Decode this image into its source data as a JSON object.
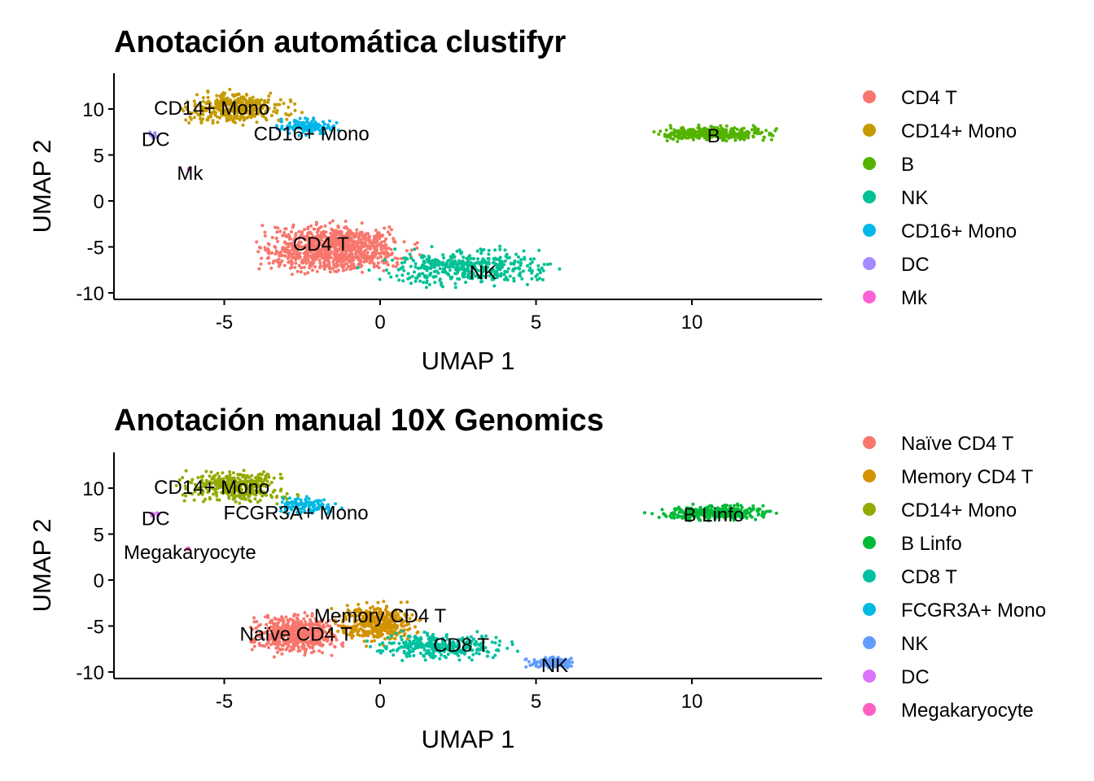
{
  "chart_data": [
    {
      "type": "scatter",
      "title": "Anotación automática clustifyr",
      "xlabel": "UMAP 1",
      "ylabel": "UMAP 2",
      "xlim": [
        -8.5,
        14.2
      ],
      "ylim": [
        -11,
        14
      ],
      "xticks": [
        "-5",
        "0",
        "5",
        "10"
      ],
      "yticks": [
        "10",
        "5",
        "0",
        "-5",
        "-10"
      ],
      "grid": false,
      "legend_position": "right",
      "legend": [
        {
          "label": "CD4 T",
          "color": "#F8766D"
        },
        {
          "label": "CD14+ Mono",
          "color": "#C49A00"
        },
        {
          "label": "B",
          "color": "#53B400"
        },
        {
          "label": "NK",
          "color": "#00C094"
        },
        {
          "label": "CD16+ Mono",
          "color": "#00B6EB"
        },
        {
          "label": "DC",
          "color": "#A58AFF"
        },
        {
          "label": "Mk",
          "color": "#FB61D7"
        }
      ],
      "clusters": [
        {
          "label": "CD14+ Mono",
          "color": "#C49A00",
          "x_range": [
            -6.8,
            -2.3
          ],
          "y_range": [
            7.8,
            12.4
          ],
          "n": 380,
          "label_x": -5.4,
          "label_y": 10.1
        },
        {
          "label": "CD16+ Mono",
          "color": "#00B6EB",
          "x_range": [
            -3.6,
            -1.1
          ],
          "y_range": [
            6.9,
            9.2
          ],
          "n": 110,
          "label_x": -2.2,
          "label_y": 7.3
        },
        {
          "label": "DC",
          "color": "#A58AFF",
          "x_range": [
            -7.5,
            -7.0
          ],
          "y_range": [
            6.6,
            7.6
          ],
          "n": 12,
          "label_x": -7.2,
          "label_y": 6.7
        },
        {
          "label": "Mk",
          "color": "#FB61D7",
          "x_range": [
            -6.3,
            -6.0
          ],
          "y_range": [
            3.2,
            3.6
          ],
          "n": 4,
          "label_x": -6.1,
          "label_y": 3.0
        },
        {
          "label": "B",
          "color": "#53B400",
          "x_range": [
            8.3,
            13.2
          ],
          "y_range": [
            6.3,
            8.4
          ],
          "n": 330,
          "label_x": 10.7,
          "label_y": 7.1
        },
        {
          "label": "CD4 T",
          "color": "#F8766D",
          "x_range": [
            -4.6,
            1.6
          ],
          "y_range": [
            -8.6,
            -1.8
          ],
          "n": 950,
          "label_x": -1.9,
          "label_y": -4.7
        },
        {
          "label": "NK",
          "color": "#00C094",
          "x_range": [
            -1.0,
            6.5
          ],
          "y_range": [
            -9.8,
            -4.6
          ],
          "n": 420,
          "label_x": 3.3,
          "label_y": -7.8
        }
      ]
    },
    {
      "type": "scatter",
      "title": "Anotación manual 10X Genomics",
      "xlabel": "UMAP 1",
      "ylabel": "UMAP 2",
      "xlim": [
        -8.5,
        14.2
      ],
      "ylim": [
        -11,
        14
      ],
      "xticks": [
        "-5",
        "0",
        "5",
        "10"
      ],
      "yticks": [
        "10",
        "5",
        "0",
        "-5",
        "-10"
      ],
      "grid": false,
      "legend_position": "right",
      "legend": [
        {
          "label": "Naïve CD4 T",
          "color": "#F8766D"
        },
        {
          "label": "Memory CD4 T",
          "color": "#D39200"
        },
        {
          "label": "CD14+ Mono",
          "color": "#93AA00"
        },
        {
          "label": "B Linfo",
          "color": "#00BA38"
        },
        {
          "label": "CD8 T",
          "color": "#00C19F"
        },
        {
          "label": "FCGR3A+ Mono",
          "color": "#00B9E3"
        },
        {
          "label": "NK",
          "color": "#619CFF"
        },
        {
          "label": "DC",
          "color": "#DB72FB"
        },
        {
          "label": "Megakaryocyte",
          "color": "#FF61C3"
        }
      ],
      "clusters": [
        {
          "label": "CD14+ Mono",
          "color": "#93AA00",
          "x_range": [
            -6.8,
            -2.3
          ],
          "y_range": [
            7.8,
            12.4
          ],
          "n": 380,
          "label_x": -5.4,
          "label_y": 10.1
        },
        {
          "label": "FCGR3A+ Mono",
          "color": "#00B9E3",
          "x_range": [
            -3.6,
            -1.1
          ],
          "y_range": [
            6.9,
            9.2
          ],
          "n": 110,
          "label_x": -2.7,
          "label_y": 7.3
        },
        {
          "label": "DC",
          "color": "#DB72FB",
          "x_range": [
            -7.5,
            -7.0
          ],
          "y_range": [
            6.6,
            7.6
          ],
          "n": 12,
          "label_x": -7.2,
          "label_y": 6.7
        },
        {
          "label": "Megakaryocyte",
          "color": "#FF61C3",
          "x_range": [
            -6.3,
            -6.0
          ],
          "y_range": [
            3.2,
            3.6
          ],
          "n": 4,
          "label_x": -6.1,
          "label_y": 3.0
        },
        {
          "label": "B Linfo",
          "color": "#00BA38",
          "x_range": [
            8.3,
            13.2
          ],
          "y_range": [
            6.3,
            8.4
          ],
          "n": 330,
          "label_x": 10.7,
          "label_y": 7.1
        },
        {
          "label": "Naïve CD4 T",
          "color": "#F8766D",
          "x_range": [
            -4.6,
            -0.8
          ],
          "y_range": [
            -8.6,
            -3.0
          ],
          "n": 560,
          "label_x": -2.7,
          "label_y": -5.9
        },
        {
          "label": "Memory CD4 T",
          "color": "#D39200",
          "x_range": [
            -1.8,
            1.6
          ],
          "y_range": [
            -7.6,
            -1.8
          ],
          "n": 380,
          "label_x": 0.0,
          "label_y": -3.9
        },
        {
          "label": "CD8 T",
          "color": "#00C19F",
          "x_range": [
            -0.8,
            4.8
          ],
          "y_range": [
            -9.2,
            -5.2
          ],
          "n": 300,
          "label_x": 2.6,
          "label_y": -7.1
        },
        {
          "label": "NK",
          "color": "#619CFF",
          "x_range": [
            4.5,
            6.5
          ],
          "y_range": [
            -9.8,
            -8.2
          ],
          "n": 120,
          "label_x": 5.6,
          "label_y": -9.3
        }
      ]
    }
  ]
}
